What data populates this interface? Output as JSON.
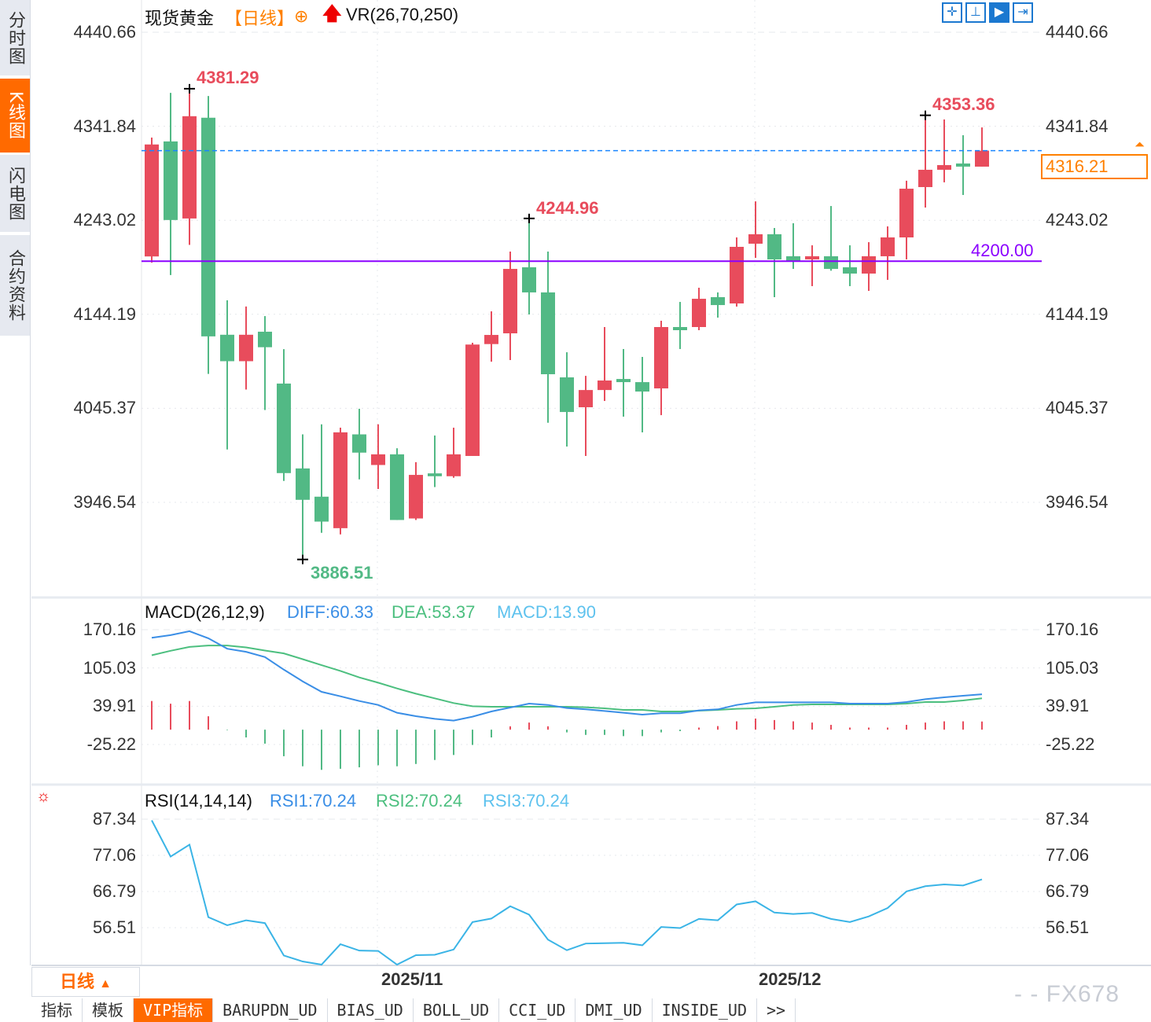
{
  "sidebar": {
    "items": [
      {
        "label": "分时图",
        "active": false
      },
      {
        "label": "K线图",
        "active": true
      },
      {
        "label": "闪电图",
        "active": false
      },
      {
        "label": "合约资料",
        "active": false
      }
    ]
  },
  "header": {
    "instrument": "现货黄金",
    "period": "【日线】",
    "add_icon": "circle-plus-icon",
    "arrow_icon": "red-up-arrow-icon",
    "indicator": "VR(26,70,250)"
  },
  "toolbar": {
    "buttons": [
      {
        "icon": "crosshair-icon",
        "active": false
      },
      {
        "icon": "range-icon",
        "active": false
      },
      {
        "icon": "zoom-right-icon",
        "active": true
      },
      {
        "icon": "scroll-end-icon",
        "active": false
      }
    ]
  },
  "colors": {
    "up": "#e84c5c",
    "down": "#52b985",
    "diff": "#3a8ee6",
    "dea": "#4cbf7f",
    "macd_label": "#5ec2ee",
    "rsi": "#3ab4e6",
    "accent": "#ff6a00",
    "support_line": "#8b00ff",
    "last_price_line": "#1a86ff"
  },
  "chart_data": [
    {
      "type": "candlestick",
      "title": "现货黄金",
      "period": "日线",
      "yticks": [
        4440.66,
        4341.84,
        4243.02,
        4144.19,
        4045.37,
        3946.54
      ],
      "xticks": [
        "2025/11",
        "2025/12"
      ],
      "grid": true,
      "candles": [
        {
          "o": 4205.0,
          "h": 4329.9,
          "l": 4198.5,
          "c": 4322.7
        },
        {
          "o": 4325.9,
          "h": 4376.9,
          "l": 4185.4,
          "c": 4243.3
        },
        {
          "o": 4244.9,
          "h": 4381.29,
          "l": 4217.1,
          "c": 4352.4
        },
        {
          "o": 4350.8,
          "h": 4373.6,
          "l": 4081.5,
          "c": 4121.0
        },
        {
          "o": 4122.7,
          "h": 4158.9,
          "l": 4002.1,
          "c": 4094.9
        },
        {
          "o": 4094.9,
          "h": 4152.4,
          "l": 4065.1,
          "c": 4122.7
        },
        {
          "o": 4125.9,
          "h": 4142.3,
          "l": 4043.6,
          "c": 4109.6
        },
        {
          "o": 4071.4,
          "h": 4107.6,
          "l": 3969.1,
          "c": 3977.3
        },
        {
          "o": 3982.2,
          "h": 4018.0,
          "l": 3886.51,
          "c": 3949.2
        },
        {
          "o": 3952.5,
          "h": 4028.6,
          "l": 3914.5,
          "c": 3926.3
        },
        {
          "o": 3919.4,
          "h": 4025.0,
          "l": 3912.9,
          "c": 4020.1
        },
        {
          "o": 4018.0,
          "h": 4044.9,
          "l": 3970.7,
          "c": 3998.8
        },
        {
          "o": 3985.8,
          "h": 4028.6,
          "l": 3960.6,
          "c": 3997.0
        },
        {
          "o": 3997.0,
          "h": 4003.4,
          "l": 3928.0,
          "c": 3928.0
        },
        {
          "o": 3929.6,
          "h": 3988.8,
          "l": 3928.0,
          "c": 3975.4
        },
        {
          "o": 3977.0,
          "h": 4016.8,
          "l": 3962.6,
          "c": 3974.0
        },
        {
          "o": 3974.0,
          "h": 4025.0,
          "l": 3972.4,
          "c": 3997.0
        },
        {
          "o": 3995.3,
          "h": 4114.3,
          "l": 3995.3,
          "c": 4112.4
        },
        {
          "o": 4112.9,
          "h": 4147.3,
          "l": 4094.4,
          "c": 4122.5
        },
        {
          "o": 4124.2,
          "h": 4210.1,
          "l": 4096.1,
          "c": 4191.9
        },
        {
          "o": 4193.6,
          "h": 4244.96,
          "l": 4144.0,
          "c": 4167.2
        },
        {
          "o": 4167.2,
          "h": 4210.1,
          "l": 4030.2,
          "c": 4081.2
        },
        {
          "o": 4077.9,
          "h": 4104.3,
          "l": 4005.2,
          "c": 4041.5
        },
        {
          "o": 4046.5,
          "h": 4079.5,
          "l": 3995.3,
          "c": 4064.6
        },
        {
          "o": 4064.6,
          "h": 4130.8,
          "l": 4053.1,
          "c": 4074.6
        },
        {
          "o": 4076.2,
          "h": 4107.7,
          "l": 4036.6,
          "c": 4072.9
        },
        {
          "o": 4072.9,
          "h": 4099.4,
          "l": 4020.1,
          "c": 4063.0
        },
        {
          "o": 4066.3,
          "h": 4137.4,
          "l": 4038.2,
          "c": 4130.8
        },
        {
          "o": 4130.8,
          "h": 4157.2,
          "l": 4107.7,
          "c": 4127.5
        },
        {
          "o": 4130.8,
          "h": 4172.1,
          "l": 4127.5,
          "c": 4160.5
        },
        {
          "o": 4162.2,
          "h": 4167.2,
          "l": 4140.7,
          "c": 4153.9
        },
        {
          "o": 4155.6,
          "h": 4225.0,
          "l": 4152.3,
          "c": 4215.1
        },
        {
          "o": 4218.4,
          "h": 4262.9,
          "l": 4203.5,
          "c": 4228.3
        },
        {
          "o": 4228.3,
          "h": 4234.9,
          "l": 4162.2,
          "c": 4201.9
        },
        {
          "o": 4205.2,
          "h": 4239.9,
          "l": 4191.9,
          "c": 4200.2
        },
        {
          "o": 4201.9,
          "h": 4216.7,
          "l": 4173.8,
          "c": 4205.2
        },
        {
          "o": 4205.2,
          "h": 4258.0,
          "l": 4190.0,
          "c": 4191.9
        },
        {
          "o": 4193.6,
          "h": 4216.7,
          "l": 4173.8,
          "c": 4187.0
        },
        {
          "o": 4187.0,
          "h": 4220.0,
          "l": 4168.8,
          "c": 4205.2
        },
        {
          "o": 4205.2,
          "h": 4236.6,
          "l": 4180.4,
          "c": 4225.0
        },
        {
          "o": 4225.0,
          "h": 4284.6,
          "l": 4201.9,
          "c": 4276.2
        },
        {
          "o": 4277.9,
          "h": 4353.36,
          "l": 4256.4,
          "c": 4296.1
        },
        {
          "o": 4296.1,
          "h": 4349.0,
          "l": 4282.9,
          "c": 4301.0
        },
        {
          "o": 4302.7,
          "h": 4332.4,
          "l": 4269.6,
          "c": 4299.4
        },
        {
          "o": 4299.4,
          "h": 4340.6,
          "l": 4299.4,
          "c": 4316.21
        }
      ],
      "annotations": [
        {
          "candle": 3,
          "kind": "high",
          "label": "4381.29"
        },
        {
          "candle": 9,
          "kind": "low",
          "label": "3886.51"
        },
        {
          "candle": 21,
          "kind": "high",
          "label": "4244.96"
        },
        {
          "candle": 42,
          "kind": "high",
          "label": "4353.36"
        }
      ],
      "horizontal_line": {
        "value": 4200.0,
        "label": "4200.00"
      },
      "last_price": {
        "value": 4316.21,
        "label": "4316.21"
      }
    },
    {
      "type": "line",
      "title": "MACD(26,12,9)",
      "yticks": [
        170.16,
        105.03,
        39.91,
        -25.22
      ],
      "legend": [
        {
          "name": "DIFF",
          "label": "DIFF:60.33"
        },
        {
          "name": "DEA",
          "label": "DEA:53.37"
        },
        {
          "name": "MACD",
          "label": "MACD:13.90"
        }
      ],
      "series": [
        {
          "name": "DIFF",
          "values": [
            156.5,
            161.0,
            167.6,
            155.6,
            137.8,
            132.5,
            123.6,
            102.2,
            82.2,
            64.4,
            56.8,
            48.8,
            42.1,
            28.8,
            23.0,
            18.5,
            15.4,
            22.1,
            31.0,
            37.7,
            44.4,
            42.1,
            36.8,
            34.6,
            31.9,
            28.8,
            25.7,
            27.9,
            27.9,
            32.8,
            34.6,
            42.1,
            46.6,
            46.6,
            46.6,
            46.6,
            46.6,
            44.4,
            44.4,
            44.4,
            47.0,
            51.9,
            55.0,
            57.7,
            60.33
          ]
        },
        {
          "name": "DEA",
          "values": [
            126.7,
            134.3,
            140.9,
            143.2,
            143.2,
            140.0,
            134.7,
            129.8,
            120.0,
            109.8,
            100.0,
            88.9,
            80.0,
            70.2,
            61.3,
            53.3,
            45.3,
            39.9,
            39.0,
            39.0,
            39.0,
            39.0,
            39.0,
            38.1,
            36.4,
            33.7,
            33.7,
            31.0,
            31.0,
            32.3,
            33.7,
            35.5,
            36.4,
            39.0,
            42.1,
            43.0,
            43.0,
            43.0,
            43.0,
            43.0,
            44.4,
            47.0,
            47.0,
            49.7,
            53.37
          ]
        },
        {
          "name": "MACD",
          "type": "bar",
          "values": [
            48.8,
            44.2,
            48.8,
            22.8,
            -0.8,
            -13.2,
            -23.8,
            -45.2,
            -62.3,
            -68.4,
            -66.6,
            -64.1,
            -60.6,
            -62.3,
            -58.4,
            -51.6,
            -43.1,
            -26.0,
            -13.2,
            5.7,
            12.1,
            5.7,
            -4.6,
            -8.9,
            -8.9,
            -11.0,
            -11.0,
            -4.6,
            -2.5,
            3.6,
            6.1,
            14.2,
            18.9,
            16.4,
            14.2,
            12.1,
            8.2,
            3.6,
            3.6,
            3.6,
            8.2,
            12.1,
            14.2,
            14.2,
            13.9
          ]
        }
      ]
    },
    {
      "type": "line",
      "title": "RSI(14,14,14)",
      "yticks": [
        87.34,
        77.06,
        66.79,
        56.51
      ],
      "legend": [
        {
          "name": "RSI1",
          "label": "RSI1:70.24"
        },
        {
          "name": "RSI2",
          "label": "RSI2:70.24"
        },
        {
          "name": "RSI3",
          "label": "RSI3:70.24"
        }
      ],
      "series": [
        {
          "name": "RSI1",
          "values": [
            87.0,
            76.7,
            80.1,
            59.5,
            57.2,
            58.6,
            57.8,
            48.6,
            46.9,
            46.0,
            51.8,
            50.0,
            49.9,
            46.0,
            48.7,
            48.8,
            50.3,
            58.1,
            59.1,
            62.6,
            60.2,
            53.1,
            50.1,
            52.0,
            52.1,
            52.2,
            51.5,
            56.7,
            56.4,
            59.0,
            58.6,
            63.1,
            64.0,
            60.8,
            60.4,
            60.7,
            59.0,
            58.1,
            59.7,
            62.1,
            66.8,
            68.3,
            68.8,
            68.5,
            70.24
          ]
        }
      ]
    }
  ],
  "rsi_panel_icon": "red-sun-icon",
  "footer": {
    "period_label": "日线",
    "period_icon": "triangle-up-icon",
    "tabs": [
      {
        "label": "指标",
        "active": false
      },
      {
        "label": "模板",
        "active": false
      },
      {
        "label": "VIP指标",
        "active": true
      },
      {
        "label": "BARUPDN_UD",
        "active": false
      },
      {
        "label": "BIAS_UD",
        "active": false
      },
      {
        "label": "BOLL_UD",
        "active": false
      },
      {
        "label": "CCI_UD",
        "active": false
      },
      {
        "label": "DMI_UD",
        "active": false
      },
      {
        "label": "INSIDE_UD",
        "active": false
      },
      {
        "label": ">>",
        "active": false
      }
    ],
    "watermark": "- - FX678"
  }
}
